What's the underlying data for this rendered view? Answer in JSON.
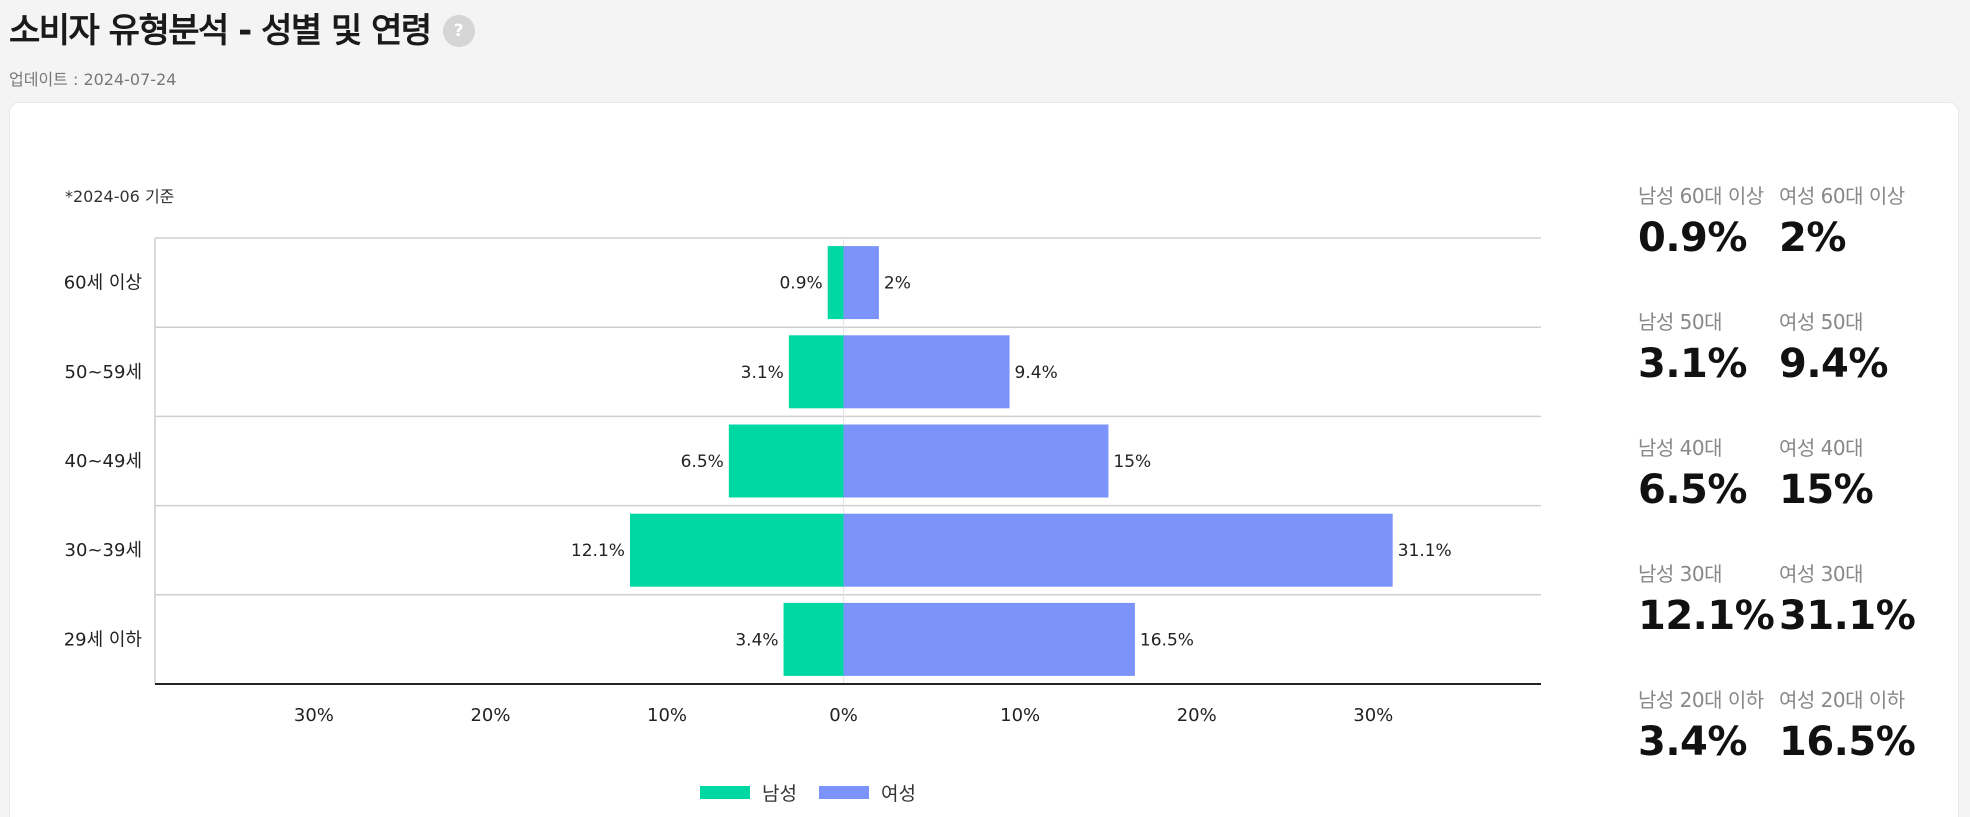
{
  "header": {
    "title": "소비자 유형분석 - 성별 및 연령",
    "help_icon": "?",
    "update_text": "업데이트 : 2024-07-24"
  },
  "chart_note": "*2024-06 기준",
  "colors": {
    "male": "#00d8a3",
    "female": "#7b93fb",
    "grid": "#cfcfcf",
    "axis": "#222222"
  },
  "chart_data": {
    "type": "bar",
    "orientation": "horizontal-diverging",
    "categories": [
      "60세 이상",
      "50~59세",
      "40~49세",
      "30~39세",
      "29세 이하"
    ],
    "series": [
      {
        "name": "남성",
        "values": [
          0.9,
          3.1,
          6.5,
          12.1,
          3.4
        ],
        "labels": [
          "0.9%",
          "3.1%",
          "6.5%",
          "12.1%",
          "3.4%"
        ]
      },
      {
        "name": "여성",
        "values": [
          2,
          9.4,
          15,
          31.1,
          16.5
        ],
        "labels": [
          "2%",
          "9.4%",
          "15%",
          "31.1%",
          "16.5%"
        ]
      }
    ],
    "xlim": [
      -39,
      39.5
    ],
    "xticks": [
      -30,
      -20,
      -10,
      0,
      10,
      20,
      30
    ],
    "xtick_labels": [
      "30%",
      "20%",
      "10%",
      "0%",
      "10%",
      "20%",
      "30%"
    ],
    "legend": [
      "남성",
      "여성"
    ],
    "legend_position": "bottom-center"
  },
  "stats": [
    {
      "male_label": "남성 60대 이상",
      "male_value": "0.9%",
      "female_label": "여성 60대 이상",
      "female_value": "2%"
    },
    {
      "male_label": "남성 50대",
      "male_value": "3.1%",
      "female_label": "여성 50대",
      "female_value": "9.4%"
    },
    {
      "male_label": "남성 40대",
      "male_value": "6.5%",
      "female_label": "여성 40대",
      "female_value": "15%"
    },
    {
      "male_label": "남성 30대",
      "male_value": "12.1%",
      "female_label": "여성 30대",
      "female_value": "31.1%"
    },
    {
      "male_label": "남성 20대 이하",
      "male_value": "3.4%",
      "female_label": "여성 20대 이하",
      "female_value": "16.5%"
    }
  ]
}
